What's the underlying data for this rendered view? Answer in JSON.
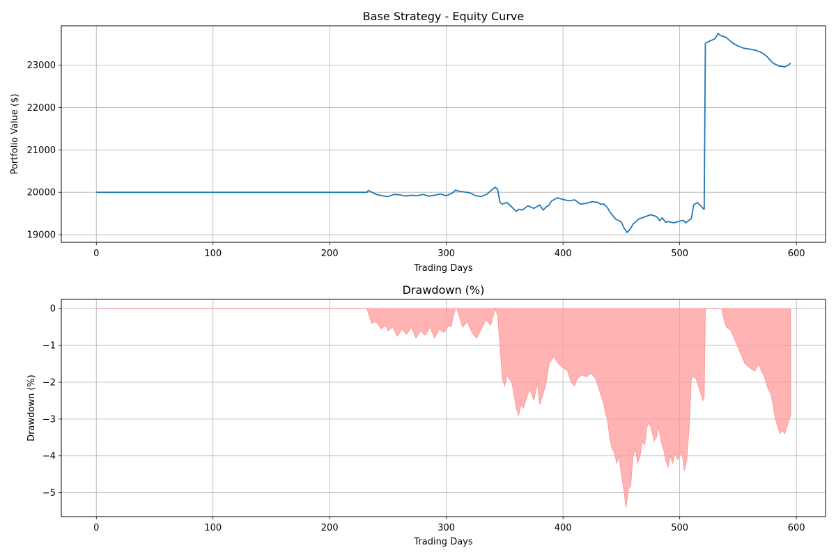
{
  "chart_data": [
    {
      "type": "line",
      "title": "Base Strategy - Equity Curve",
      "xlabel": "Trading Days",
      "ylabel": "Portfolio Value ($)",
      "xlim": [
        -30,
        625
      ],
      "ylim": [
        18820,
        23930
      ],
      "xticks": [
        0,
        100,
        200,
        300,
        400,
        500,
        600
      ],
      "yticks": [
        19000,
        20000,
        21000,
        22000,
        23000
      ],
      "grid": true,
      "color": "#1f77b4",
      "series": [
        {
          "x": [
            0,
            100,
            200,
            232,
            233,
            235,
            240,
            245,
            250,
            255,
            260,
            265,
            270,
            275,
            280,
            285,
            290,
            295,
            300,
            305,
            308,
            310,
            315,
            320,
            325,
            330,
            335,
            340,
            342,
            344,
            346,
            348,
            352,
            355,
            360,
            362,
            365,
            370,
            375,
            380,
            383,
            385,
            388,
            390,
            395,
            400,
            405,
            410,
            415,
            420,
            425,
            430,
            432,
            435,
            438,
            440,
            445,
            450,
            452,
            455,
            458,
            460,
            465,
            470,
            475,
            480,
            483,
            485,
            488,
            490,
            495,
            500,
            503,
            505,
            508,
            510,
            512,
            515,
            518,
            520,
            521,
            522,
            525,
            530,
            533,
            535,
            540,
            545,
            550,
            555,
            560,
            565,
            570,
            575,
            578,
            580,
            585,
            590,
            593,
            595
          ],
          "y": [
            20000,
            20000,
            20000,
            20000,
            20040,
            20020,
            19950,
            19920,
            19900,
            19950,
            19940,
            19910,
            19930,
            19920,
            19950,
            19910,
            19930,
            19960,
            19920,
            19980,
            20050,
            20030,
            20010,
            19990,
            19920,
            19900,
            19960,
            20080,
            20120,
            20060,
            19760,
            19720,
            19760,
            19680,
            19550,
            19600,
            19580,
            19680,
            19620,
            19700,
            19580,
            19640,
            19700,
            19790,
            19870,
            19830,
            19800,
            19820,
            19720,
            19740,
            19780,
            19760,
            19720,
            19720,
            19640,
            19540,
            19370,
            19300,
            19170,
            19050,
            19150,
            19250,
            19370,
            19420,
            19470,
            19430,
            19330,
            19400,
            19290,
            19310,
            19280,
            19320,
            19340,
            19280,
            19340,
            19380,
            19700,
            19760,
            19680,
            19620,
            19600,
            23520,
            23560,
            23620,
            23750,
            23700,
            23650,
            23530,
            23450,
            23400,
            23380,
            23350,
            23300,
            23200,
            23100,
            23050,
            22980,
            22960,
            23000,
            23050
          ]
        }
      ]
    },
    {
      "type": "area",
      "title": "Drawdown (%)",
      "xlabel": "Trading Days",
      "ylabel": "Drawdown (%)",
      "xlim": [
        -30,
        625
      ],
      "ylim": [
        -5.65,
        0.25
      ],
      "xticks": [
        0,
        100,
        200,
        300,
        400,
        500,
        600
      ],
      "yticks": [
        0,
        -1,
        -2,
        -3,
        -4,
        -5
      ],
      "grid": true,
      "color": "#ff9999",
      "series": [
        {
          "x": [
            0,
            232,
            234,
            236,
            240,
            244,
            248,
            250,
            254,
            258,
            262,
            266,
            270,
            274,
            278,
            282,
            286,
            290,
            294,
            298,
            302,
            304,
            306,
            308,
            309,
            311,
            314,
            318,
            322,
            326,
            330,
            334,
            338,
            342,
            344,
            346,
            348,
            350,
            352,
            356,
            360,
            362,
            364,
            366,
            370,
            372,
            375,
            378,
            380,
            383,
            385,
            388,
            390,
            392,
            396,
            400,
            404,
            407,
            410,
            412,
            416,
            420,
            424,
            428,
            432,
            435,
            436,
            438,
            440,
            442,
            444,
            446,
            448,
            450,
            452,
            454,
            456,
            458,
            460,
            462,
            464,
            466,
            468,
            470,
            472,
            474,
            476,
            478,
            480,
            482,
            484,
            486,
            488,
            490,
            492,
            494,
            496,
            498,
            500,
            502,
            504,
            506,
            508,
            510,
            512,
            514,
            516,
            518,
            520,
            521,
            522,
            524,
            526,
            528,
            530,
            532,
            534,
            536,
            538,
            540,
            544,
            548,
            552,
            556,
            560,
            564,
            566,
            568,
            570,
            572,
            574,
            576,
            578,
            580,
            582,
            584,
            586,
            588,
            590,
            592,
            594,
            595
          ],
          "y": [
            0,
            0,
            -0.2,
            -0.4,
            -0.35,
            -0.55,
            -0.45,
            -0.6,
            -0.5,
            -0.75,
            -0.55,
            -0.7,
            -0.5,
            -0.8,
            -0.6,
            -0.72,
            -0.5,
            -0.8,
            -0.55,
            -0.65,
            -0.45,
            -0.5,
            -0.2,
            0,
            0,
            -0.2,
            -0.5,
            -0.35,
            -0.65,
            -0.8,
            -0.55,
            -0.3,
            -0.45,
            0,
            -0.2,
            -1.0,
            -1.9,
            -2.1,
            -1.8,
            -2.0,
            -2.7,
            -2.9,
            -2.6,
            -2.7,
            -2.3,
            -2.2,
            -2.5,
            -2.0,
            -2.6,
            -2.3,
            -2.1,
            -1.5,
            -1.4,
            -1.3,
            -1.5,
            -1.6,
            -1.7,
            -2.0,
            -2.1,
            -1.9,
            -1.8,
            -1.85,
            -1.75,
            -1.9,
            -2.3,
            -2.6,
            -2.8,
            -3.0,
            -3.5,
            -3.8,
            -3.9,
            -4.2,
            -4.0,
            -4.5,
            -4.9,
            -5.4,
            -4.9,
            -4.8,
            -4.0,
            -3.8,
            -4.2,
            -4.0,
            -3.6,
            -3.7,
            -3.2,
            -3.1,
            -3.3,
            -3.6,
            -3.5,
            -3.2,
            -3.6,
            -3.8,
            -4.1,
            -4.3,
            -4.0,
            -4.2,
            -3.9,
            -4.1,
            -4.0,
            -3.9,
            -4.4,
            -4.1,
            -3.3,
            -1.9,
            -1.85,
            -1.9,
            -2.1,
            -2.3,
            -2.5,
            -2.4,
            0,
            0,
            0,
            0,
            0,
            0,
            0,
            0,
            -0.3,
            -0.5,
            -0.6,
            -0.9,
            -1.2,
            -1.5,
            -1.6,
            -1.7,
            -1.6,
            -1.5,
            -1.7,
            -1.8,
            -2.0,
            -2.2,
            -2.3,
            -2.6,
            -3.0,
            -3.2,
            -3.4,
            -3.3,
            -3.4,
            -3.2,
            -3.0,
            -2.9
          ]
        }
      ]
    }
  ]
}
